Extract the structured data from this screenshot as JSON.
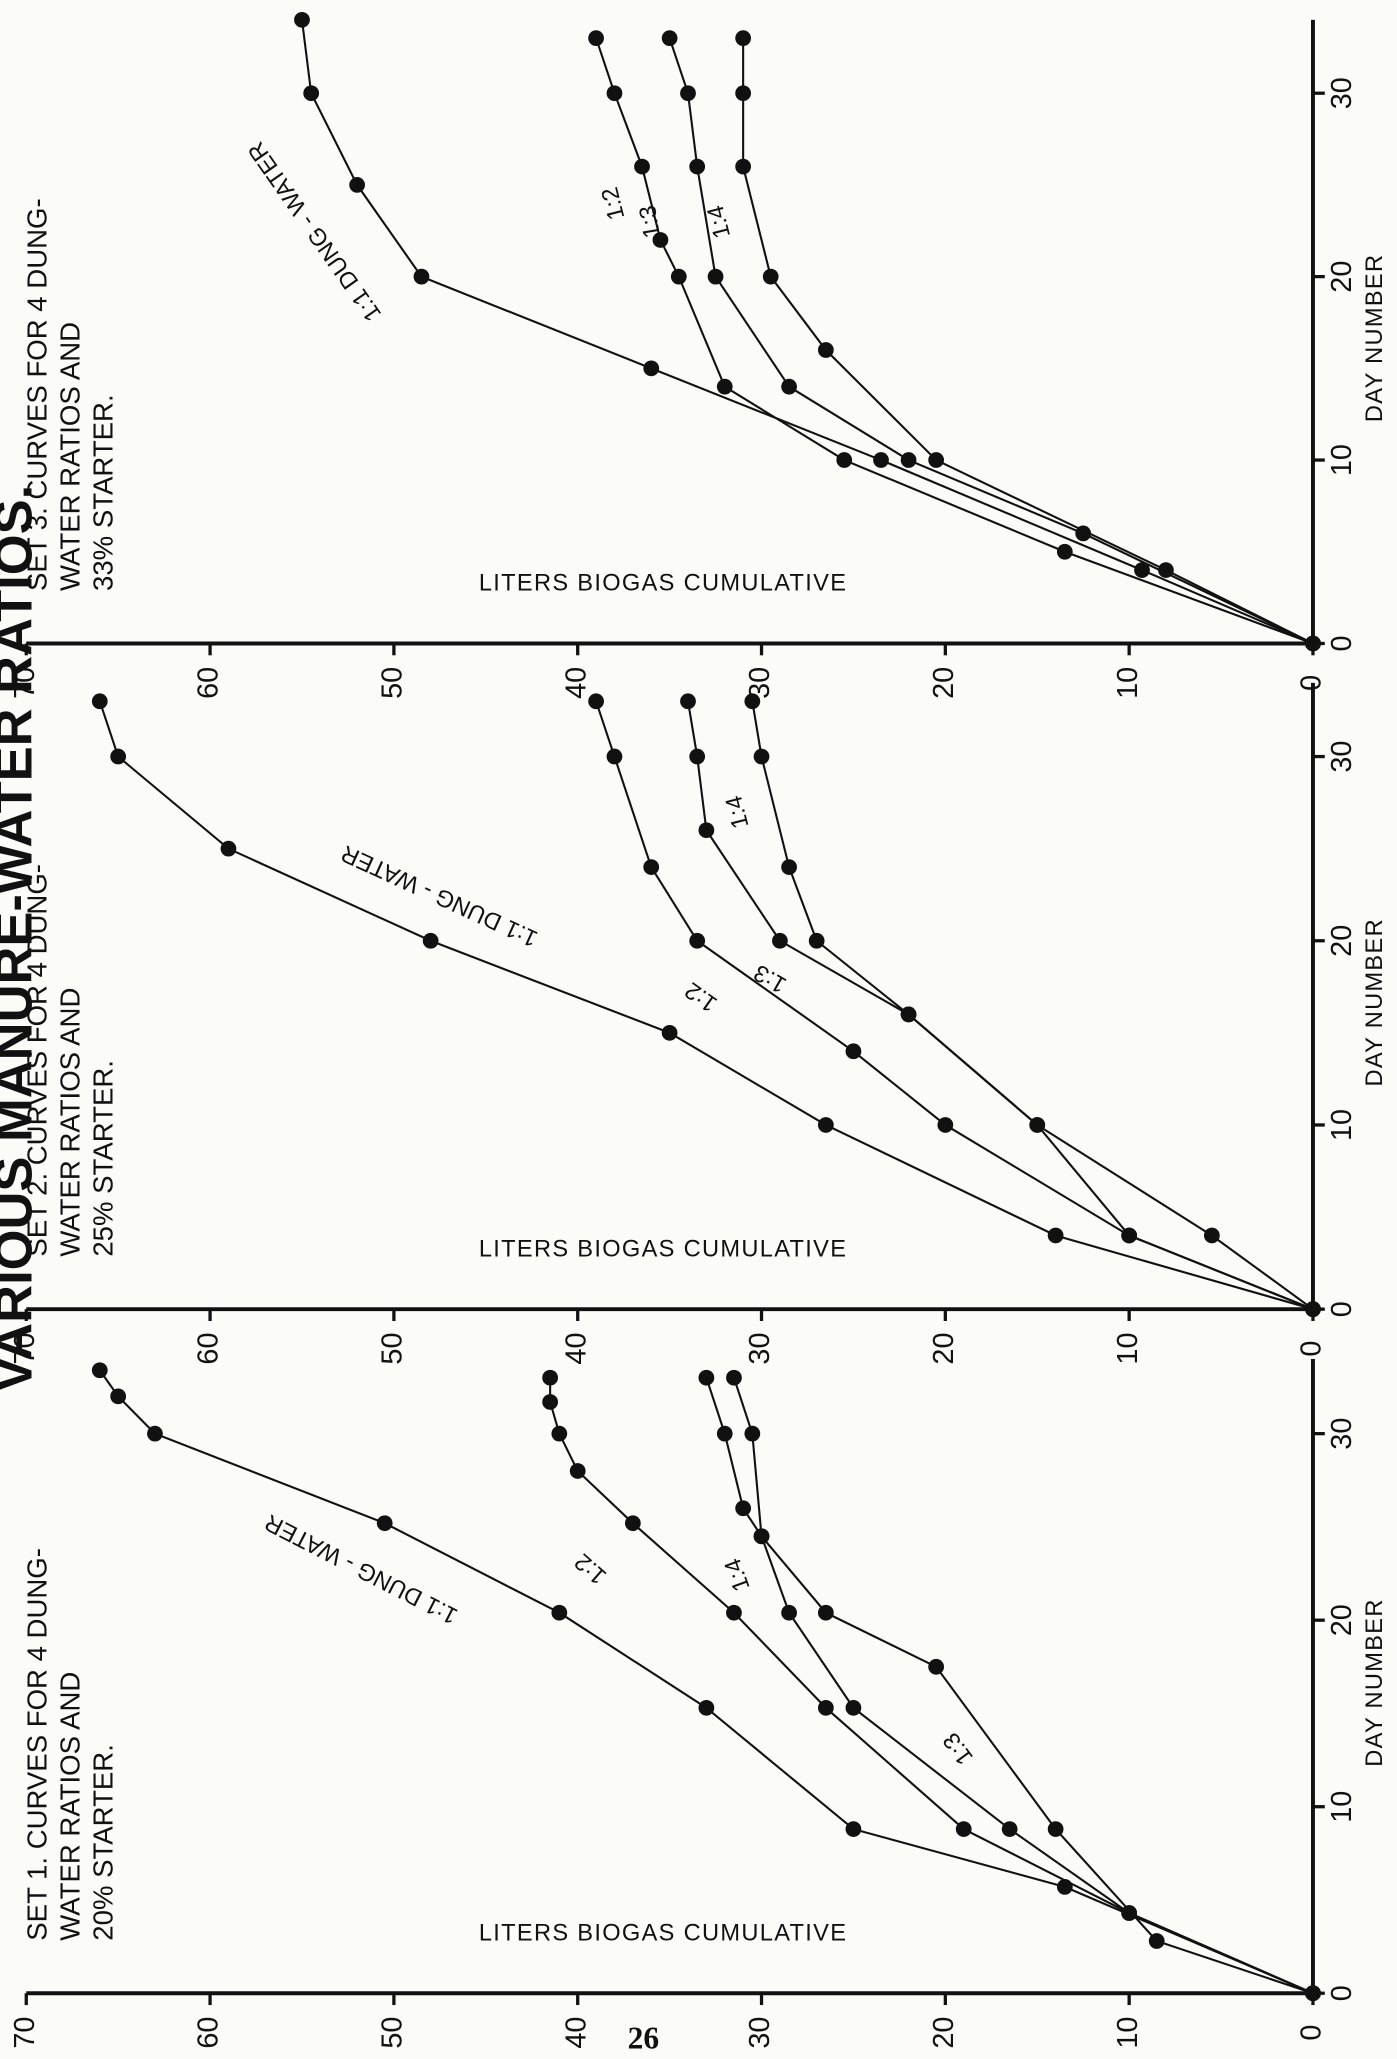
{
  "page": {
    "header": "VARIOUS MANURE-WATER RATIOS.",
    "page_number": "26"
  },
  "chart_data": [
    {
      "type": "line",
      "title": [
        "SET 1. CURVES FOR 4 DUNG-",
        "WATER RATIOS AND",
        "20% STARTER."
      ],
      "ylabel": "LITERS BIOGAS CUMULATIVE",
      "xlabel": "DAY NUMBER",
      "xlim": [
        0,
        34
      ],
      "ylim": [
        0,
        70
      ],
      "xticks": [
        0,
        10,
        20,
        30
      ],
      "yticks": [
        0,
        10,
        20,
        30,
        40,
        50,
        60,
        70
      ],
      "series": [
        {
          "name": "1:1 DUNG - WATER",
          "color": "#111111",
          "x": [
            0,
            5.7,
            8.8,
            15.3,
            20.4,
            25.2,
            30,
            32,
            33.4
          ],
          "values": [
            0,
            13.5,
            25,
            33,
            41,
            50.5,
            63,
            65,
            66
          ]
        },
        {
          "name": "1:2",
          "color": "#111111",
          "x": [
            0,
            4.3,
            8.8,
            15.3,
            20.4,
            25.2,
            28,
            30,
            31.7,
            33
          ],
          "values": [
            0,
            10,
            19,
            26.5,
            31.5,
            37,
            40,
            41,
            41.5,
            41.5
          ]
        },
        {
          "name": "1:3",
          "color": "#111111",
          "x": [
            0,
            2.8,
            8.8,
            17.5,
            20.4,
            24.5,
            30,
            33
          ],
          "values": [
            0,
            8.5,
            14,
            20.5,
            26.5,
            30,
            30.5,
            31.5
          ]
        },
        {
          "name": "1:4",
          "color": "#111111",
          "x": [
            0,
            4.3,
            8.8,
            15.3,
            20.4,
            24.5,
            26,
            30,
            33
          ],
          "values": [
            0,
            10,
            16.5,
            25,
            28.5,
            30,
            31,
            32,
            33
          ]
        }
      ]
    },
    {
      "type": "line",
      "title": [
        "SET 2.  CURVES FOR 4 DUNG-",
        "WATER RATIOS AND",
        "25% STARTER."
      ],
      "ylabel": "LITERS BIOGAS CUMULATIVE",
      "xlabel": "DAY NUMBER",
      "xlim": [
        0,
        34
      ],
      "ylim": [
        0,
        70
      ],
      "xticks": [
        0,
        10,
        20,
        30
      ],
      "yticks": [
        0,
        10,
        20,
        30,
        40,
        50,
        60,
        70
      ],
      "series": [
        {
          "name": "1:1 DUNG - WATER",
          "color": "#111111",
          "x": [
            0,
            4,
            10,
            15,
            20,
            25,
            30,
            33
          ],
          "values": [
            0,
            14,
            26.5,
            35,
            48,
            59,
            65,
            66
          ]
        },
        {
          "name": "1:2",
          "color": "#111111",
          "x": [
            0,
            4,
            10,
            14,
            20,
            24,
            30,
            33
          ],
          "values": [
            0,
            10,
            20,
            25,
            33.5,
            36,
            38,
            39
          ]
        },
        {
          "name": "1:3",
          "color": "#111111",
          "x": [
            0,
            4,
            10,
            16,
            20,
            26,
            30,
            33
          ],
          "values": [
            0,
            10,
            15,
            22,
            29,
            33,
            33.5,
            34
          ]
        },
        {
          "name": "1:4",
          "color": "#111111",
          "x": [
            0,
            4,
            10,
            16,
            20,
            24,
            30,
            33
          ],
          "values": [
            0,
            5.5,
            15,
            22,
            27,
            28.5,
            30,
            30.5
          ]
        }
      ]
    },
    {
      "type": "line",
      "title": [
        "SET 3.  CURVES FOR 4 DUNG-",
        "WATER RATIOS AND",
        "33% STARTER."
      ],
      "ylabel": "LITERS BIOGAS CUMULATIVE",
      "xlabel": "DAY NUMBER",
      "xlim": [
        0,
        34
      ],
      "ylim": [
        0,
        70
      ],
      "xticks": [
        0,
        10,
        20,
        30
      ],
      "yticks": [
        0,
        10,
        20,
        30,
        40,
        50,
        60,
        70
      ],
      "series": [
        {
          "name": "1:1 DUNG - WATER",
          "color": "#111111",
          "x": [
            0,
            4,
            10,
            15,
            20,
            25,
            30,
            34
          ],
          "values": [
            0,
            9.3,
            23.5,
            36,
            48.5,
            52,
            54.5,
            55
          ]
        },
        {
          "name": "1:2",
          "color": "#111111",
          "x": [
            0,
            5,
            10,
            14,
            20,
            22,
            26,
            30,
            33
          ],
          "values": [
            0,
            13.5,
            25.5,
            32,
            34.5,
            35.5,
            36.5,
            38,
            39
          ]
        },
        {
          "name": "1:3",
          "color": "#111111",
          "x": [
            0,
            6,
            10,
            14,
            20,
            26,
            30,
            33
          ],
          "values": [
            0,
            12.5,
            22,
            28.5,
            32.5,
            33.5,
            34,
            35
          ]
        },
        {
          "name": "1:4",
          "color": "#111111",
          "x": [
            0,
            4,
            10,
            16,
            20,
            26,
            30,
            33
          ],
          "values": [
            0,
            8,
            20.5,
            26.5,
            29.5,
            31,
            31,
            31
          ]
        }
      ]
    }
  ]
}
